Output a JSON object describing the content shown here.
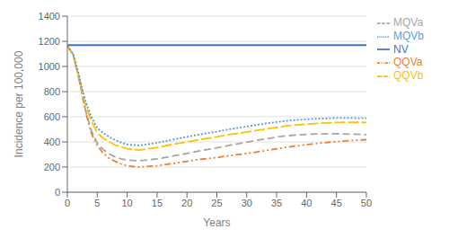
{
  "chart_data": {
    "type": "line",
    "title": "",
    "xlabel": "Years",
    "ylabel": "Incidence per 100,000",
    "x": [
      0,
      1,
      2,
      3,
      4,
      5,
      6,
      7,
      8,
      9,
      10,
      12,
      15,
      17,
      20,
      22,
      25,
      27,
      30,
      32,
      35,
      37,
      40,
      42,
      45,
      47,
      50
    ],
    "xlim": [
      0,
      50
    ],
    "ylim": [
      0,
      1400
    ],
    "xticks": [
      0,
      5,
      10,
      15,
      20,
      25,
      30,
      35,
      40,
      45,
      50
    ],
    "yticks": [
      0,
      200,
      400,
      600,
      800,
      1000,
      1200,
      1400
    ],
    "grid": "y",
    "legend": "right",
    "series": [
      {
        "name": "NV",
        "color": "#4472C4",
        "line_style": "solid",
        "values": [
          1170,
          1170,
          1170,
          1170,
          1170,
          1170,
          1170,
          1170,
          1170,
          1170,
          1170,
          1170,
          1170,
          1170,
          1170,
          1170,
          1170,
          1170,
          1170,
          1170,
          1170,
          1170,
          1170,
          1170,
          1170,
          1170,
          1170
        ]
      },
      {
        "name": "QQVa",
        "color": "#ED7D31",
        "line_style": "dashdotdot",
        "values": [
          1165,
          1090,
          890,
          650,
          470,
          370,
          310,
          270,
          245,
          225,
          210,
          200,
          210,
          225,
          245,
          260,
          275,
          290,
          308,
          322,
          345,
          360,
          378,
          390,
          402,
          410,
          418
        ]
      },
      {
        "name": "MQVa",
        "color": "#A5A5A5",
        "line_style": "dashed",
        "values": [
          1165,
          1090,
          890,
          660,
          490,
          390,
          340,
          305,
          280,
          265,
          255,
          250,
          265,
          282,
          308,
          328,
          352,
          372,
          398,
          415,
          438,
          450,
          460,
          463,
          465,
          462,
          458
        ]
      },
      {
        "name": "QQVb",
        "color": "#FFC000",
        "line_style": "longdashed",
        "values": [
          1165,
          1095,
          910,
          700,
          570,
          470,
          430,
          400,
          375,
          360,
          345,
          335,
          355,
          375,
          400,
          418,
          440,
          458,
          478,
          494,
          515,
          530,
          542,
          548,
          555,
          556,
          555
        ]
      },
      {
        "name": "MQVb",
        "color": "#5B9BD5",
        "line_style": "dotted",
        "values": [
          1165,
          1095,
          920,
          730,
          600,
          510,
          470,
          440,
          415,
          395,
          380,
          372,
          392,
          412,
          440,
          458,
          482,
          500,
          522,
          538,
          558,
          570,
          580,
          585,
          590,
          590,
          588
        ]
      }
    ]
  }
}
